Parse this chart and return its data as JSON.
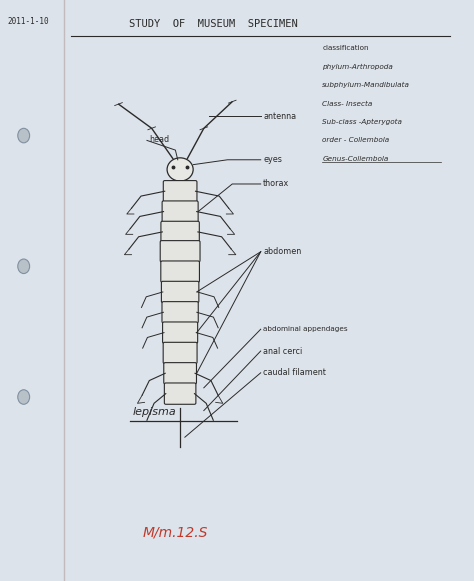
{
  "bg_color": "#dde3ea",
  "title": "STUDY  OF  MUSEUM  SPECIMEN",
  "date_text": "2011-1-10",
  "classification_lines": [
    "classification",
    "phylum-Arthropoda",
    "subphylum-Mandibulata",
    "Class- Insecta",
    "Sub-class -Apterygota",
    "order - Collembola",
    "Genus-Collembola"
  ],
  "label_head": "head",
  "label_antenna": "antenna",
  "label_eyes": "eyes",
  "label_thorax": "thorax",
  "label_abdomen": "abdomen",
  "label_abdominal": "abdominal appendages",
  "label_anal": "anal cerci",
  "label_caudal": "caudal filament",
  "label_lepisma": "lepisma",
  "label_marks": "M/m.12.S",
  "ink_color": "#2a2a2a",
  "red_color": "#c0392b"
}
